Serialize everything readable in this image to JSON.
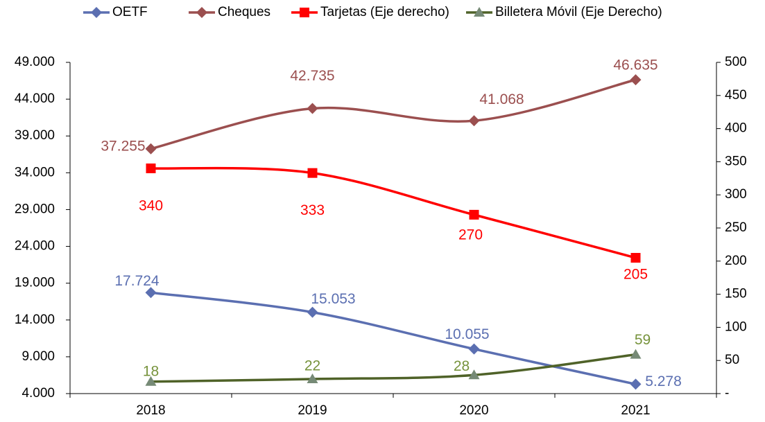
{
  "chart_data": {
    "type": "line",
    "smooth": true,
    "categories": [
      "2018",
      "2019",
      "2020",
      "2021"
    ],
    "series": [
      {
        "name": "OETF",
        "color": "#5b6fb1",
        "marker": "diamond",
        "values": [
          17724,
          15053,
          10055,
          5278
        ],
        "value_labels": [
          "17.724",
          "15.053",
          "10.055",
          "5.278"
        ]
      },
      {
        "name": "Cheques",
        "color": "#9b4f4f",
        "marker": "diamond",
        "values": [
          37255,
          42735,
          41068,
          46635
        ],
        "value_labels": [
          "37.255",
          "42.735",
          "41.068",
          "46.635"
        ]
      },
      {
        "name": "Tarjetas (Eje derecho)",
        "color": "#ff0000",
        "marker": "square",
        "axis": "y2",
        "values": [
          340,
          333,
          270,
          205
        ]
      },
      {
        "name": "Billetera Móvil (Eje Derecho)",
        "color": "#4f6228",
        "marker": "triangle",
        "axis": "y2",
        "values": [
          18,
          22,
          28,
          59
        ]
      }
    ],
    "ylim": [
      4000,
      49000
    ],
    "yticks": [
      {
        "value": 4000,
        "label": "4.000"
      },
      {
        "value": 9000,
        "label": "9.000"
      },
      {
        "value": 14000,
        "label": "14.000"
      },
      {
        "value": 19000,
        "label": "19.000"
      },
      {
        "value": 24000,
        "label": "24.000"
      },
      {
        "value": 29000,
        "label": "29.000"
      },
      {
        "value": 34000,
        "label": "34.000"
      },
      {
        "value": 39000,
        "label": "39.000"
      },
      {
        "value": 44000,
        "label": "44.000"
      },
      {
        "value": 49000,
        "label": "49.000"
      }
    ],
    "y2lim": [
      0,
      500
    ],
    "y2ticks": [
      {
        "value": 0,
        "label": "-"
      },
      50,
      100,
      150,
      200,
      250,
      300,
      350,
      400,
      450,
      500
    ],
    "legend": "top"
  }
}
